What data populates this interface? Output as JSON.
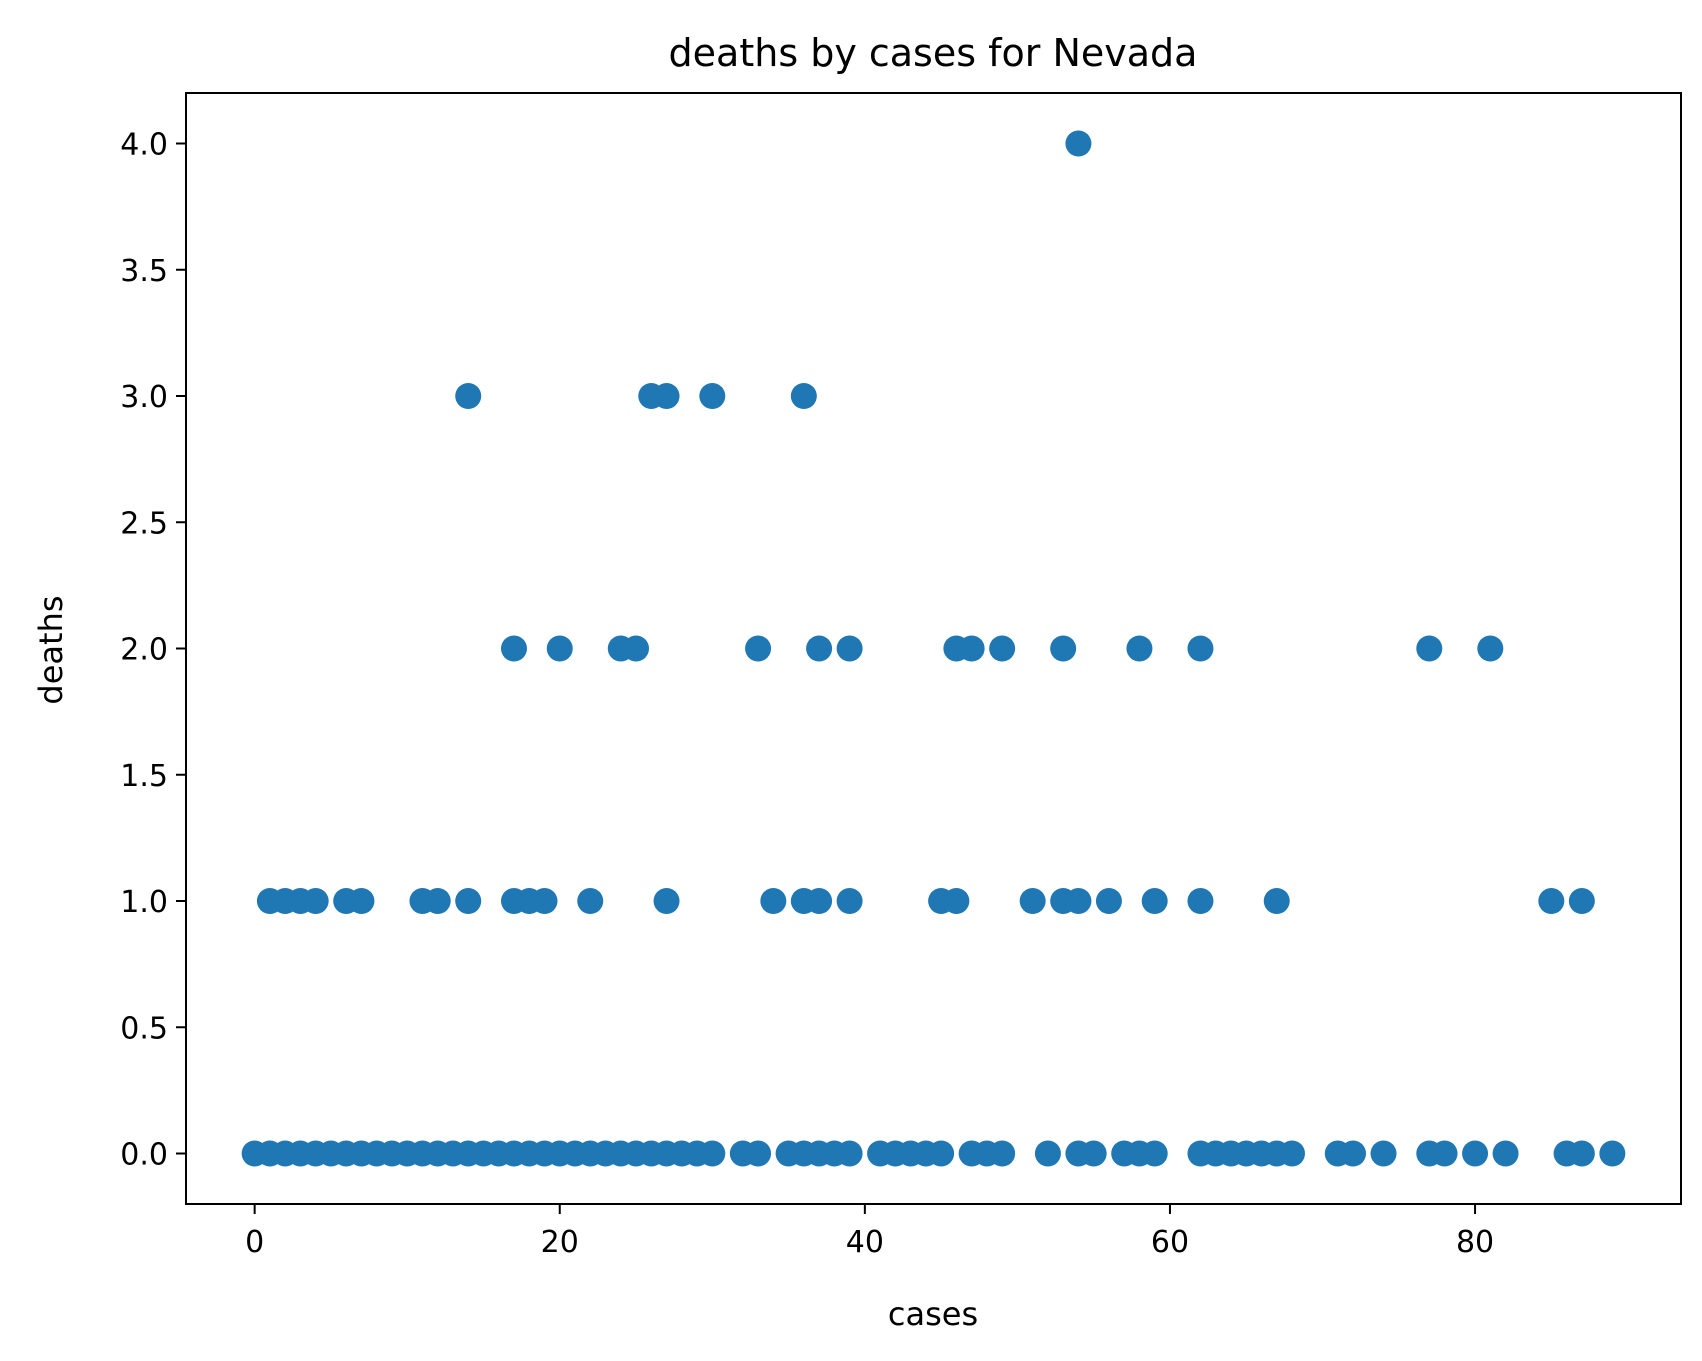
{
  "chart_data": {
    "type": "scatter",
    "title": "deaths by cases for Nevada",
    "xlabel": "cases",
    "ylabel": "deaths",
    "xlim": [
      -4.5,
      93.5
    ],
    "ylim": [
      -0.2,
      4.2
    ],
    "xticks": [
      0,
      20,
      40,
      60,
      80
    ],
    "xtick_labels": [
      "0",
      "20",
      "40",
      "60",
      "80"
    ],
    "yticks": [
      0.0,
      0.5,
      1.0,
      1.5,
      2.0,
      2.5,
      3.0,
      3.5,
      4.0
    ],
    "ytick_labels": [
      "0.0",
      "0.5",
      "1.0",
      "1.5",
      "2.0",
      "2.5",
      "3.0",
      "3.5",
      "4.0"
    ],
    "grid": false,
    "legend": "none",
    "marker_color": "#1f77b4",
    "points": [
      [
        0,
        0
      ],
      [
        1,
        0
      ],
      [
        2,
        0
      ],
      [
        3,
        0
      ],
      [
        4,
        0
      ],
      [
        5,
        0
      ],
      [
        6,
        0
      ],
      [
        7,
        0
      ],
      [
        8,
        0
      ],
      [
        9,
        0
      ],
      [
        10,
        0
      ],
      [
        11,
        0
      ],
      [
        12,
        0
      ],
      [
        13,
        0
      ],
      [
        14,
        0
      ],
      [
        15,
        0
      ],
      [
        16,
        0
      ],
      [
        17,
        0
      ],
      [
        18,
        0
      ],
      [
        19,
        0
      ],
      [
        20,
        0
      ],
      [
        21,
        0
      ],
      [
        22,
        0
      ],
      [
        23,
        0
      ],
      [
        24,
        0
      ],
      [
        25,
        0
      ],
      [
        26,
        0
      ],
      [
        27,
        0
      ],
      [
        28,
        0
      ],
      [
        29,
        0
      ],
      [
        30,
        0
      ],
      [
        32,
        0
      ],
      [
        33,
        0
      ],
      [
        35,
        0
      ],
      [
        36,
        0
      ],
      [
        37,
        0
      ],
      [
        38,
        0
      ],
      [
        39,
        0
      ],
      [
        41,
        0
      ],
      [
        42,
        0
      ],
      [
        43,
        0
      ],
      [
        44,
        0
      ],
      [
        45,
        0
      ],
      [
        47,
        0
      ],
      [
        48,
        0
      ],
      [
        49,
        0
      ],
      [
        52,
        0
      ],
      [
        54,
        0
      ],
      [
        55,
        0
      ],
      [
        57,
        0
      ],
      [
        58,
        0
      ],
      [
        59,
        0
      ],
      [
        62,
        0
      ],
      [
        63,
        0
      ],
      [
        64,
        0
      ],
      [
        65,
        0
      ],
      [
        66,
        0
      ],
      [
        67,
        0
      ],
      [
        68,
        0
      ],
      [
        71,
        0
      ],
      [
        72,
        0
      ],
      [
        74,
        0
      ],
      [
        77,
        0
      ],
      [
        78,
        0
      ],
      [
        80,
        0
      ],
      [
        82,
        0
      ],
      [
        86,
        0
      ],
      [
        87,
        0
      ],
      [
        89,
        0
      ],
      [
        1,
        1
      ],
      [
        2,
        1
      ],
      [
        3,
        1
      ],
      [
        4,
        1
      ],
      [
        6,
        1
      ],
      [
        7,
        1
      ],
      [
        11,
        1
      ],
      [
        12,
        1
      ],
      [
        14,
        1
      ],
      [
        17,
        1
      ],
      [
        18,
        1
      ],
      [
        19,
        1
      ],
      [
        22,
        1
      ],
      [
        27,
        1
      ],
      [
        34,
        1
      ],
      [
        36,
        1
      ],
      [
        37,
        1
      ],
      [
        39,
        1
      ],
      [
        45,
        1
      ],
      [
        46,
        1
      ],
      [
        51,
        1
      ],
      [
        53,
        1
      ],
      [
        54,
        1
      ],
      [
        56,
        1
      ],
      [
        59,
        1
      ],
      [
        62,
        1
      ],
      [
        67,
        1
      ],
      [
        85,
        1
      ],
      [
        87,
        1
      ],
      [
        17,
        2
      ],
      [
        20,
        2
      ],
      [
        24,
        2
      ],
      [
        25,
        2
      ],
      [
        33,
        2
      ],
      [
        37,
        2
      ],
      [
        39,
        2
      ],
      [
        46,
        2
      ],
      [
        47,
        2
      ],
      [
        49,
        2
      ],
      [
        53,
        2
      ],
      [
        58,
        2
      ],
      [
        62,
        2
      ],
      [
        77,
        2
      ],
      [
        81,
        2
      ],
      [
        14,
        3
      ],
      [
        26,
        3
      ],
      [
        27,
        3
      ],
      [
        30,
        3
      ],
      [
        36,
        3
      ],
      [
        54,
        4
      ]
    ]
  }
}
